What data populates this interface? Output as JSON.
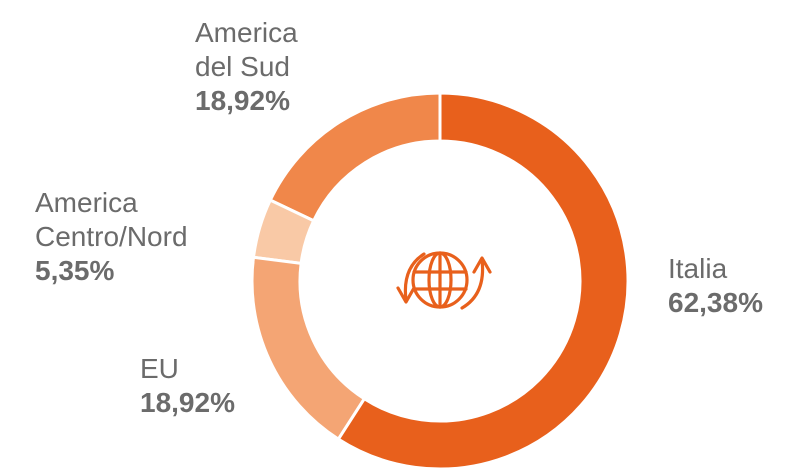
{
  "chart_data": {
    "type": "donut",
    "categories": [
      "Italia",
      "EU",
      "America Centro/Nord",
      "America del Sud"
    ],
    "values": [
      62.38,
      18.92,
      5.35,
      18.92
    ],
    "value_labels": [
      "62,38%",
      "18,92%",
      "5,35%",
      "18,92%"
    ],
    "colors": [
      "#e8601c",
      "#f4a574",
      "#f9c9a6",
      "#f0874a"
    ]
  }
}
